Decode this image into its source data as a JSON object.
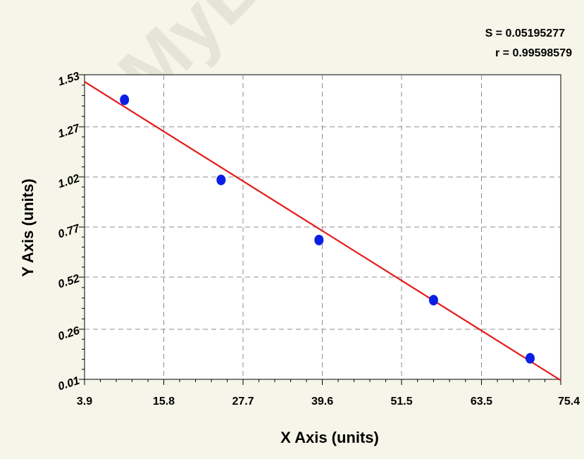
{
  "watermark": "MyB",
  "stats": {
    "s": "S = 0.05195277",
    "r": "r = 0.99598579"
  },
  "chart_data": {
    "type": "scatter",
    "title": "",
    "xlabel": "X Axis (units)",
    "ylabel": "Y Axis (units)",
    "xlim": [
      3.9,
      75.4
    ],
    "ylim": [
      0.01,
      1.53
    ],
    "x_ticks": [
      3.9,
      15.8,
      27.7,
      39.6,
      51.5,
      63.5,
      75.4
    ],
    "x_tick_labels": [
      "3.9",
      "15.8",
      "27.7",
      "39.6",
      "51.5",
      "63.5",
      "75.4"
    ],
    "y_ticks": [
      0.01,
      0.26,
      0.52,
      0.77,
      1.02,
      1.27,
      1.53
    ],
    "y_tick_labels": [
      "0.01",
      "0.26",
      "0.52",
      "0.77",
      "1.02",
      "1.27",
      "1.53"
    ],
    "grid": true,
    "points": [
      {
        "x": 9.9,
        "y": 1.405
      },
      {
        "x": 24.4,
        "y": 1.005
      },
      {
        "x": 39.1,
        "y": 0.705
      },
      {
        "x": 56.3,
        "y": 0.405
      },
      {
        "x": 70.8,
        "y": 0.115
      }
    ],
    "fit_line": {
      "x": [
        3.9,
        75.4
      ],
      "y": [
        1.495,
        0.005
      ]
    },
    "colors": {
      "points": "#0a1ee6",
      "fit": "#e41a1a",
      "grid": "#8c8c8c",
      "background": "#f6f5e9",
      "plot_bg": "#ffffff"
    }
  }
}
